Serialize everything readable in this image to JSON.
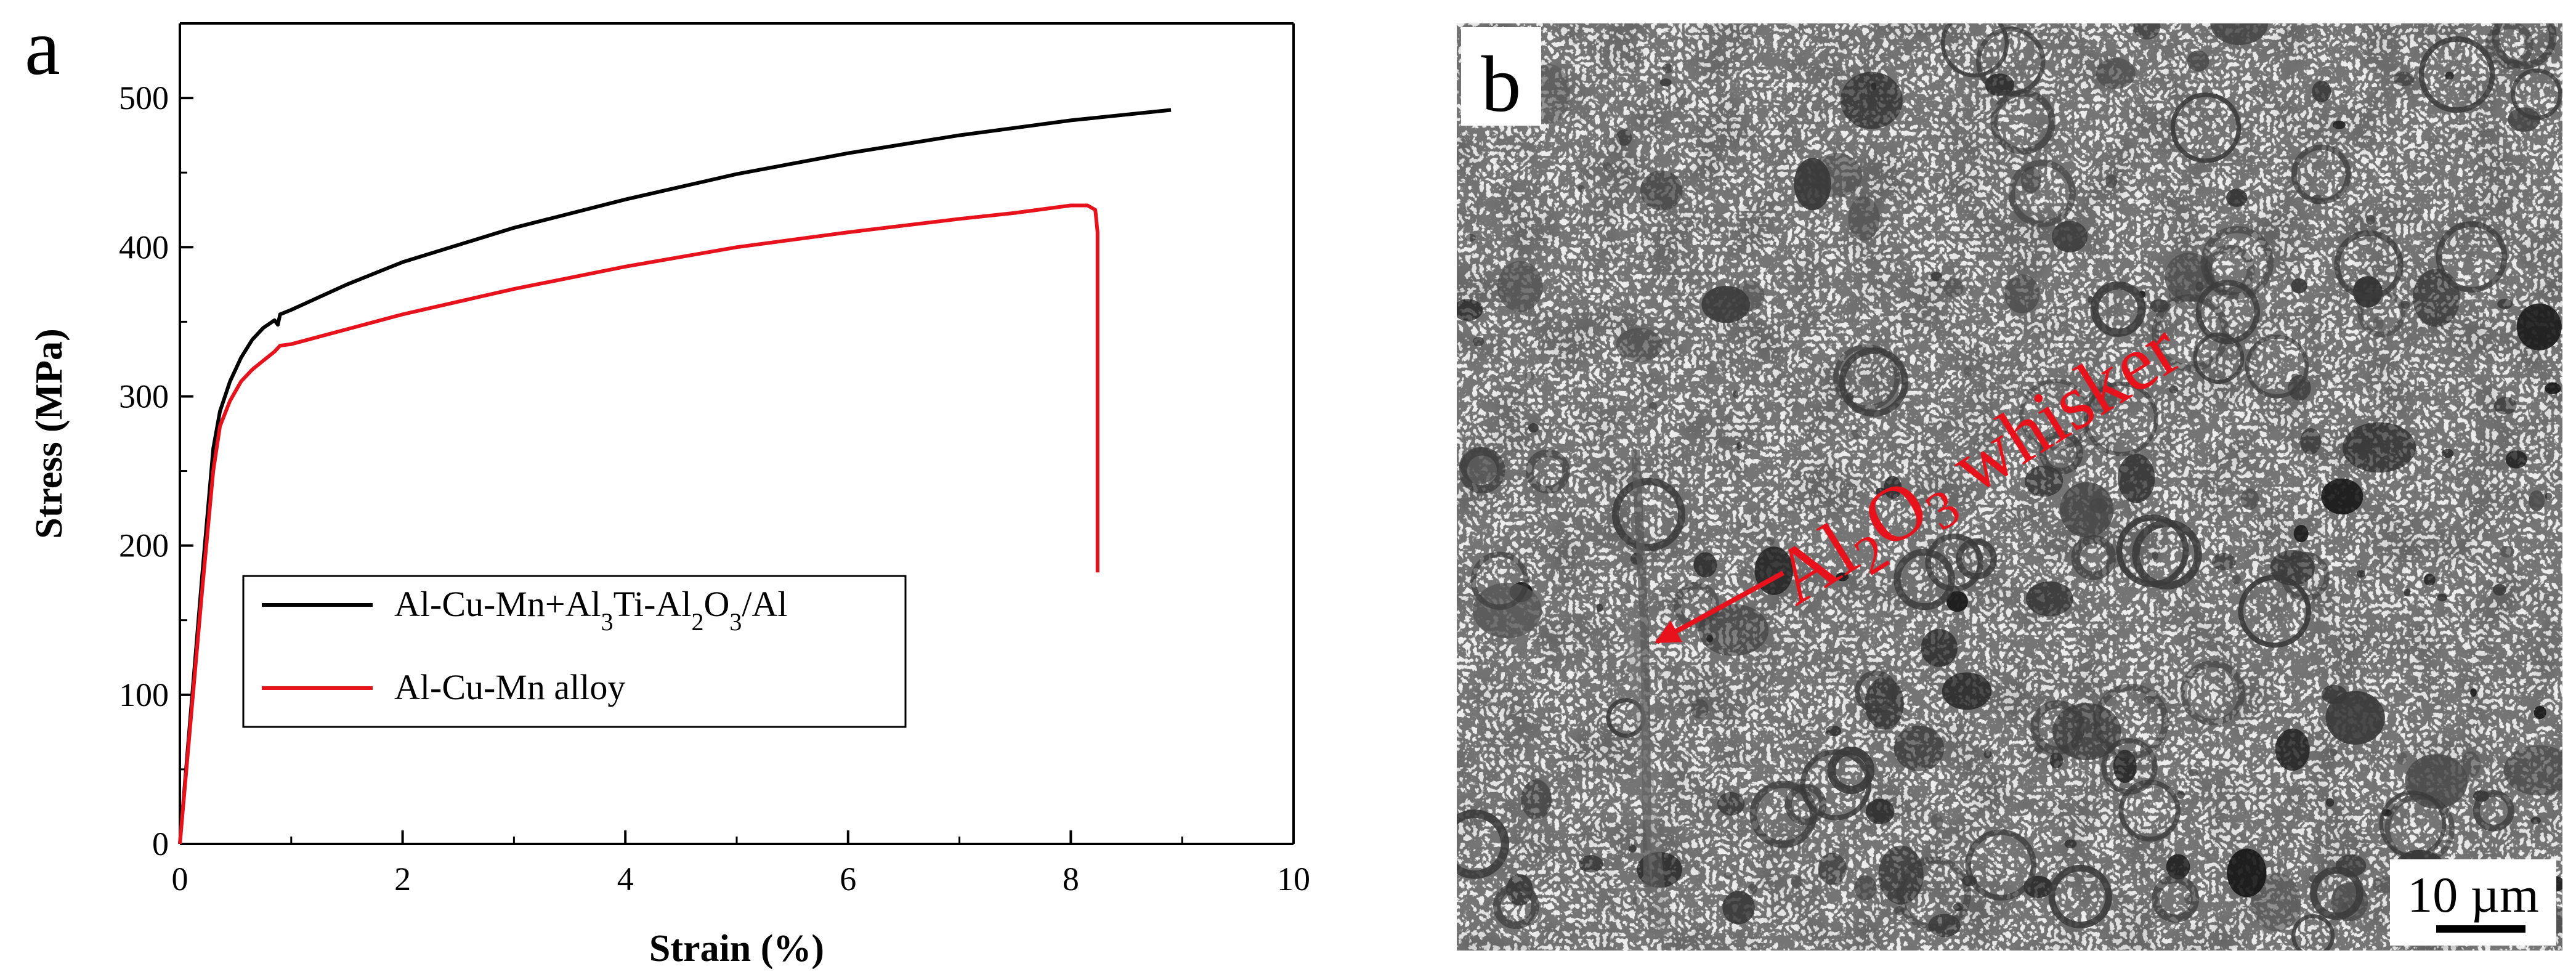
{
  "panels": {
    "a_label": "a",
    "b_label": "b"
  },
  "chart_data": {
    "type": "line",
    "xlabel": "Strain (%)",
    "ylabel": "Stress (MPa)",
    "xlim": [
      0,
      10
    ],
    "ylim": [
      0,
      550
    ],
    "xticks": [
      0,
      2,
      4,
      6,
      8,
      10
    ],
    "yticks": [
      0,
      100,
      200,
      300,
      400,
      500
    ],
    "grid": false,
    "legend_position": "lower-left",
    "series": [
      {
        "name": "Al-Cu-Mn+Al3Ti-Al2O3/Al",
        "color": "#000000",
        "x": [
          0,
          0.1,
          0.2,
          0.3,
          0.36,
          0.45,
          0.55,
          0.65,
          0.75,
          0.85,
          0.88,
          0.9,
          1.0,
          1.5,
          2.0,
          3.0,
          4.0,
          5.0,
          6.0,
          7.0,
          8.0,
          8.9
        ],
        "y": [
          0,
          90,
          180,
          265,
          290,
          310,
          326,
          338,
          346,
          351,
          348,
          355,
          358,
          375,
          390,
          413,
          432,
          449,
          463,
          475,
          485,
          492
        ]
      },
      {
        "name": "Al-Cu-Mn alloy",
        "color": "#e8121c",
        "x": [
          0,
          0.1,
          0.2,
          0.3,
          0.36,
          0.45,
          0.55,
          0.65,
          0.75,
          0.85,
          0.9,
          1.0,
          1.5,
          2.0,
          3.0,
          4.0,
          5.0,
          6.0,
          7.0,
          7.5,
          8.0,
          8.15,
          8.22,
          8.24,
          8.24
        ],
        "y": [
          0,
          85,
          170,
          250,
          280,
          297,
          310,
          318,
          324,
          330,
          334,
          335,
          345,
          355,
          372,
          387,
          400,
          410,
          419,
          423,
          428,
          428,
          425,
          410,
          182
        ]
      }
    ]
  },
  "micrograph": {
    "annotation_parts": [
      "Al",
      "2",
      "O",
      "3",
      " whisker"
    ],
    "scale_bar_label": "10 µm",
    "annotation_color": "#e8121c"
  }
}
